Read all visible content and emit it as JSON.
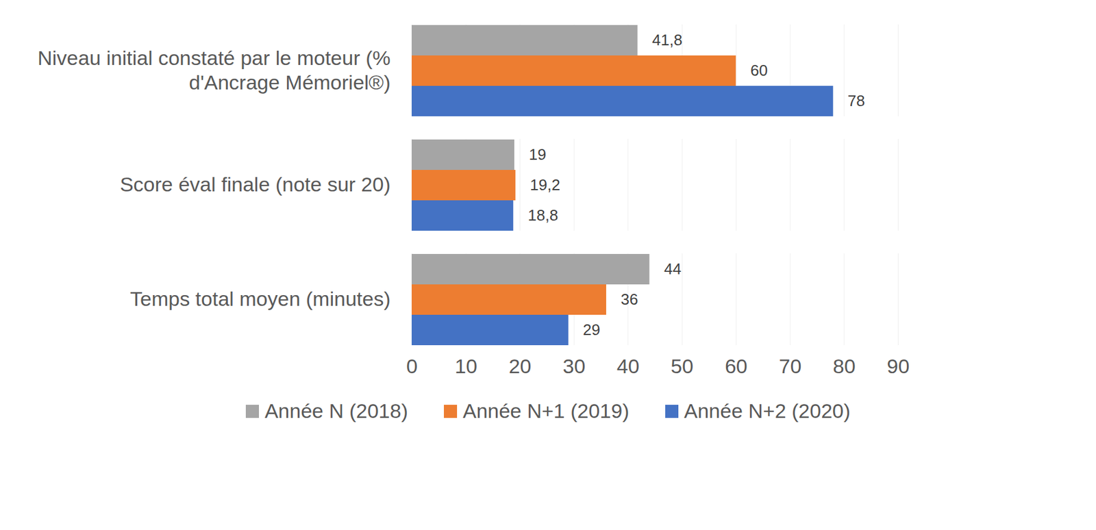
{
  "chart_data": {
    "type": "bar",
    "orientation": "horizontal",
    "categories": [
      "Niveau initial constaté par le moteur (% d'Ancrage Mémoriel®)",
      "Score éval finale (note sur 20)",
      "Temps total moyen (minutes)"
    ],
    "series": [
      {
        "name": "Année N (2018)",
        "color": "#a5a5a5",
        "values": [
          41.8,
          19,
          44
        ],
        "value_labels": [
          "41,8",
          "19",
          "44"
        ]
      },
      {
        "name": "Année N+1 (2019)",
        "color": "#ed7d31",
        "values": [
          60,
          19.2,
          36
        ],
        "value_labels": [
          "60",
          "19,2",
          "36"
        ]
      },
      {
        "name": "Année N+2 (2020)",
        "color": "#4472c4",
        "values": [
          78,
          18.8,
          29
        ],
        "value_labels": [
          "78",
          "18,8",
          "29"
        ]
      }
    ],
    "xlim": [
      0,
      90
    ],
    "xticks": [
      0,
      10,
      20,
      30,
      40,
      50,
      60,
      70,
      80,
      90
    ],
    "grid": true,
    "data_labels": true,
    "legend": "bottom"
  }
}
